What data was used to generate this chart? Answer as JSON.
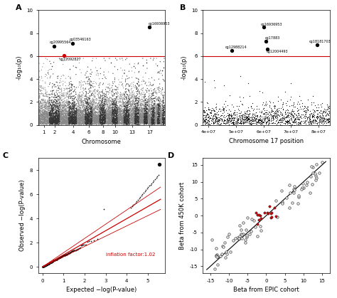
{
  "panel_A": {
    "label": "A",
    "xlabel": "Chromosome",
    "ylabel": "-log₁₀(p)",
    "ylim": [
      0,
      10
    ],
    "yticks": [
      0,
      2,
      4,
      6,
      8,
      10
    ],
    "threshold": 6.0,
    "threshold_color": "#cc0000",
    "colors": [
      "#888888",
      "#333333"
    ]
  },
  "panel_B": {
    "label": "B",
    "xlabel": "Chromosome 17 position",
    "ylabel": "-log₁₀(p)",
    "ylim": [
      0,
      10
    ],
    "yticks": [
      0,
      2,
      4,
      6,
      8,
      10
    ],
    "threshold": 6.0,
    "xlim": [
      38000000,
      84000000
    ],
    "xticks": [
      40000000,
      50000000,
      60000000,
      70000000,
      80000000
    ],
    "xtick_labels": [
      "4e+07",
      "5e+07",
      "6e+07",
      "7e+07",
      "8e+07"
    ],
    "threshold_color": "#cc0000",
    "dot_color": "#111111"
  },
  "panel_C": {
    "label": "C",
    "xlabel": "Expected −log(P-value)",
    "ylabel": "Observed −log(P-value)",
    "xlim": [
      -0.2,
      5.8
    ],
    "ylim": [
      -0.5,
      9.0
    ],
    "xticks": [
      0,
      1,
      2,
      3,
      4,
      5
    ],
    "yticks": [
      0,
      2,
      4,
      6,
      8
    ],
    "inflation_label": "inflation factor:1.02",
    "inflation_color": "#cc0000",
    "dot_color": "#111111",
    "line_color": "#cc0000"
  },
  "panel_D": {
    "label": "D",
    "xlabel": "Beta from EPIC cohort",
    "ylabel": "Beta from 450K cohort",
    "xlim": [
      -17,
      17
    ],
    "ylim": [
      -17,
      17
    ],
    "xticks": [
      -15,
      -10,
      -5,
      0,
      5,
      10,
      15
    ],
    "yticks": [
      -15,
      -10,
      -5,
      0,
      5,
      10,
      15
    ],
    "dot_color": "#111111",
    "highlight_color": "#cc0000",
    "line_color": "#000000"
  }
}
